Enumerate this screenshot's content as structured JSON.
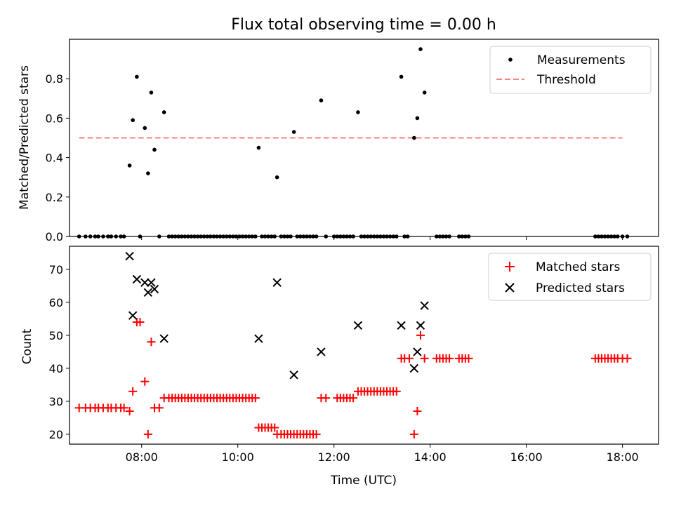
{
  "figure": {
    "title": "Flux total observing time = 0.00 h"
  },
  "chart_data": [
    {
      "type": "scatter",
      "title": "",
      "xlabel": "",
      "ylabel": "Matched/Predicted stars",
      "xlim": [
        "06:30",
        "18:45"
      ],
      "ylim": [
        0,
        1.0
      ],
      "yticks": [
        0.0,
        0.2,
        0.4,
        0.6,
        0.8
      ],
      "ytick_labels": [
        "0.0",
        "0.2",
        "0.4",
        "0.6",
        "0.8"
      ],
      "xtick_labels": [
        "",
        "",
        "",
        "",
        "",
        ""
      ],
      "legend": {
        "placement": "top-right",
        "entries": [
          "Measurements",
          "Threshold"
        ]
      },
      "colors": {
        "measurements": "#000000",
        "threshold": "#ff8080"
      },
      "threshold": {
        "name": "Threshold",
        "y": 0.5,
        "x_range": [
          "06:42",
          "18:00"
        ]
      },
      "series": [
        {
          "name": "Measurements",
          "points": [
            [
              "07:45",
              0.36
            ],
            [
              "07:49",
              0.59
            ],
            [
              "07:54",
              0.81
            ],
            [
              "08:04",
              0.55
            ],
            [
              "08:08",
              0.32
            ],
            [
              "08:12",
              0.73
            ],
            [
              "08:16",
              0.44
            ],
            [
              "08:28",
              0.63
            ],
            [
              "10:26",
              0.45
            ],
            [
              "10:49",
              0.3
            ],
            [
              "11:10",
              0.53
            ],
            [
              "11:44",
              0.69
            ],
            [
              "12:30",
              0.63
            ],
            [
              "13:24",
              0.81
            ],
            [
              "13:40",
              0.5
            ],
            [
              "13:44",
              0.6
            ],
            [
              "13:48",
              0.95
            ],
            [
              "13:53",
              0.73
            ],
            [
              "06:42",
              0.0
            ],
            [
              "06:50",
              0.0
            ],
            [
              "06:56",
              0.0
            ],
            [
              "07:02",
              0.0
            ],
            [
              "07:06",
              0.0
            ],
            [
              "07:12",
              0.0
            ],
            [
              "07:18",
              0.0
            ],
            [
              "07:22",
              0.0
            ],
            [
              "07:28",
              0.0
            ],
            [
              "07:34",
              0.0
            ],
            [
              "07:38",
              0.0
            ],
            [
              "07:58",
              0.0
            ],
            [
              "08:22",
              0.0
            ],
            [
              "08:34",
              0.0
            ],
            [
              "08:38",
              0.0
            ],
            [
              "08:42",
              0.0
            ],
            [
              "08:46",
              0.0
            ],
            [
              "08:50",
              0.0
            ],
            [
              "08:54",
              0.0
            ],
            [
              "08:58",
              0.0
            ],
            [
              "09:02",
              0.0
            ],
            [
              "09:06",
              0.0
            ],
            [
              "09:10",
              0.0
            ],
            [
              "09:14",
              0.0
            ],
            [
              "09:18",
              0.0
            ],
            [
              "09:22",
              0.0
            ],
            [
              "09:26",
              0.0
            ],
            [
              "09:30",
              0.0
            ],
            [
              "09:34",
              0.0
            ],
            [
              "09:38",
              0.0
            ],
            [
              "09:42",
              0.0
            ],
            [
              "09:46",
              0.0
            ],
            [
              "09:50",
              0.0
            ],
            [
              "09:54",
              0.0
            ],
            [
              "09:58",
              0.0
            ],
            [
              "10:02",
              0.0
            ],
            [
              "10:06",
              0.0
            ],
            [
              "10:10",
              0.0
            ],
            [
              "10:14",
              0.0
            ],
            [
              "10:18",
              0.0
            ],
            [
              "10:22",
              0.0
            ],
            [
              "10:30",
              0.0
            ],
            [
              "10:34",
              0.0
            ],
            [
              "10:38",
              0.0
            ],
            [
              "10:42",
              0.0
            ],
            [
              "10:46",
              0.0
            ],
            [
              "10:54",
              0.0
            ],
            [
              "10:58",
              0.0
            ],
            [
              "11:02",
              0.0
            ],
            [
              "11:06",
              0.0
            ],
            [
              "11:14",
              0.0
            ],
            [
              "11:18",
              0.0
            ],
            [
              "11:22",
              0.0
            ],
            [
              "11:26",
              0.0
            ],
            [
              "11:30",
              0.0
            ],
            [
              "11:34",
              0.0
            ],
            [
              "11:38",
              0.0
            ],
            [
              "11:50",
              0.0
            ],
            [
              "12:00",
              0.0
            ],
            [
              "12:04",
              0.0
            ],
            [
              "12:08",
              0.0
            ],
            [
              "12:12",
              0.0
            ],
            [
              "12:16",
              0.0
            ],
            [
              "12:20",
              0.0
            ],
            [
              "12:24",
              0.0
            ],
            [
              "12:34",
              0.0
            ],
            [
              "12:38",
              0.0
            ],
            [
              "12:42",
              0.0
            ],
            [
              "12:46",
              0.0
            ],
            [
              "12:50",
              0.0
            ],
            [
              "12:54",
              0.0
            ],
            [
              "12:58",
              0.0
            ],
            [
              "13:02",
              0.0
            ],
            [
              "13:06",
              0.0
            ],
            [
              "13:10",
              0.0
            ],
            [
              "13:14",
              0.0
            ],
            [
              "13:18",
              0.0
            ],
            [
              "13:28",
              0.0
            ],
            [
              "13:32",
              0.0
            ],
            [
              "14:08",
              0.0
            ],
            [
              "14:12",
              0.0
            ],
            [
              "14:16",
              0.0
            ],
            [
              "14:20",
              0.0
            ],
            [
              "14:24",
              0.0
            ],
            [
              "14:36",
              0.0
            ],
            [
              "14:40",
              0.0
            ],
            [
              "14:44",
              0.0
            ],
            [
              "14:48",
              0.0
            ],
            [
              "17:26",
              0.0
            ],
            [
              "17:30",
              0.0
            ],
            [
              "17:34",
              0.0
            ],
            [
              "17:38",
              0.0
            ],
            [
              "17:42",
              0.0
            ],
            [
              "17:46",
              0.0
            ],
            [
              "17:50",
              0.0
            ],
            [
              "17:54",
              0.0
            ],
            [
              "18:00",
              0.0
            ],
            [
              "18:06",
              0.0
            ]
          ]
        }
      ]
    },
    {
      "type": "scatter",
      "title": "",
      "xlabel": "Time (UTC)",
      "ylabel": "Count",
      "xlim": [
        "06:30",
        "18:45"
      ],
      "ylim": [
        17,
        77
      ],
      "yticks": [
        20,
        30,
        40,
        50,
        60,
        70
      ],
      "ytick_labels": [
        "20",
        "30",
        "40",
        "50",
        "60",
        "70"
      ],
      "xtick_values": [
        "08:00",
        "10:00",
        "12:00",
        "14:00",
        "16:00",
        "18:00"
      ],
      "xtick_labels": [
        "08:00",
        "10:00",
        "12:00",
        "14:00",
        "16:00",
        "18:00"
      ],
      "legend": {
        "placement": "top-right",
        "entries": [
          "Matched stars",
          "Predicted stars"
        ]
      },
      "colors": {
        "matched": "#ff0000",
        "predicted": "#000000"
      },
      "series": [
        {
          "name": "Matched stars",
          "points": [
            [
              "06:42",
              28
            ],
            [
              "06:50",
              28
            ],
            [
              "06:56",
              28
            ],
            [
              "07:02",
              28
            ],
            [
              "07:06",
              28
            ],
            [
              "07:12",
              28
            ],
            [
              "07:18",
              28
            ],
            [
              "07:22",
              28
            ],
            [
              "07:28",
              28
            ],
            [
              "07:34",
              28
            ],
            [
              "07:38",
              28
            ],
            [
              "07:45",
              27
            ],
            [
              "07:49",
              33
            ],
            [
              "07:54",
              54
            ],
            [
              "07:58",
              54
            ],
            [
              "08:04",
              36
            ],
            [
              "08:08",
              20
            ],
            [
              "08:12",
              48
            ],
            [
              "08:16",
              28
            ],
            [
              "08:22",
              28
            ],
            [
              "08:28",
              31
            ],
            [
              "08:34",
              31
            ],
            [
              "08:38",
              31
            ],
            [
              "08:42",
              31
            ],
            [
              "08:46",
              31
            ],
            [
              "08:50",
              31
            ],
            [
              "08:54",
              31
            ],
            [
              "08:58",
              31
            ],
            [
              "09:02",
              31
            ],
            [
              "09:06",
              31
            ],
            [
              "09:10",
              31
            ],
            [
              "09:14",
              31
            ],
            [
              "09:18",
              31
            ],
            [
              "09:22",
              31
            ],
            [
              "09:26",
              31
            ],
            [
              "09:30",
              31
            ],
            [
              "09:34",
              31
            ],
            [
              "09:38",
              31
            ],
            [
              "09:42",
              31
            ],
            [
              "09:46",
              31
            ],
            [
              "09:50",
              31
            ],
            [
              "09:54",
              31
            ],
            [
              "09:58",
              31
            ],
            [
              "10:02",
              31
            ],
            [
              "10:06",
              31
            ],
            [
              "10:10",
              31
            ],
            [
              "10:14",
              31
            ],
            [
              "10:18",
              31
            ],
            [
              "10:22",
              31
            ],
            [
              "10:26",
              22
            ],
            [
              "10:30",
              22
            ],
            [
              "10:34",
              22
            ],
            [
              "10:38",
              22
            ],
            [
              "10:42",
              22
            ],
            [
              "10:46",
              22
            ],
            [
              "10:49",
              20
            ],
            [
              "10:54",
              20
            ],
            [
              "10:58",
              20
            ],
            [
              "11:02",
              20
            ],
            [
              "11:06",
              20
            ],
            [
              "11:10",
              20
            ],
            [
              "11:14",
              20
            ],
            [
              "11:18",
              20
            ],
            [
              "11:22",
              20
            ],
            [
              "11:26",
              20
            ],
            [
              "11:30",
              20
            ],
            [
              "11:34",
              20
            ],
            [
              "11:38",
              20
            ],
            [
              "11:44",
              31
            ],
            [
              "11:50",
              31
            ],
            [
              "12:04",
              31
            ],
            [
              "12:08",
              31
            ],
            [
              "12:12",
              31
            ],
            [
              "12:16",
              31
            ],
            [
              "12:20",
              31
            ],
            [
              "12:24",
              31
            ],
            [
              "12:30",
              33
            ],
            [
              "12:34",
              33
            ],
            [
              "12:38",
              33
            ],
            [
              "12:42",
              33
            ],
            [
              "12:46",
              33
            ],
            [
              "12:50",
              33
            ],
            [
              "12:54",
              33
            ],
            [
              "12:58",
              33
            ],
            [
              "13:02",
              33
            ],
            [
              "13:06",
              33
            ],
            [
              "13:10",
              33
            ],
            [
              "13:14",
              33
            ],
            [
              "13:18",
              33
            ],
            [
              "13:24",
              43
            ],
            [
              "13:28",
              43
            ],
            [
              "13:34",
              43
            ],
            [
              "13:40",
              20
            ],
            [
              "13:44",
              27
            ],
            [
              "13:48",
              50
            ],
            [
              "13:53",
              43
            ],
            [
              "14:08",
              43
            ],
            [
              "14:12",
              43
            ],
            [
              "14:16",
              43
            ],
            [
              "14:20",
              43
            ],
            [
              "14:24",
              43
            ],
            [
              "14:36",
              43
            ],
            [
              "14:40",
              43
            ],
            [
              "14:44",
              43
            ],
            [
              "14:48",
              43
            ],
            [
              "17:26",
              43
            ],
            [
              "17:30",
              43
            ],
            [
              "17:34",
              43
            ],
            [
              "17:38",
              43
            ],
            [
              "17:42",
              43
            ],
            [
              "17:46",
              43
            ],
            [
              "17:50",
              43
            ],
            [
              "17:54",
              43
            ],
            [
              "18:00",
              43
            ],
            [
              "18:06",
              43
            ]
          ]
        },
        {
          "name": "Predicted stars",
          "points": [
            [
              "07:45",
              74
            ],
            [
              "07:49",
              56
            ],
            [
              "07:54",
              67
            ],
            [
              "08:04",
              66
            ],
            [
              "08:08",
              63
            ],
            [
              "08:12",
              66
            ],
            [
              "08:16",
              64
            ],
            [
              "08:28",
              49
            ],
            [
              "10:26",
              49
            ],
            [
              "10:49",
              66
            ],
            [
              "11:10",
              38
            ],
            [
              "11:44",
              45
            ],
            [
              "12:30",
              53
            ],
            [
              "13:24",
              53
            ],
            [
              "13:40",
              40
            ],
            [
              "13:44",
              45
            ],
            [
              "13:48",
              53
            ],
            [
              "13:53",
              59
            ]
          ]
        }
      ]
    }
  ]
}
